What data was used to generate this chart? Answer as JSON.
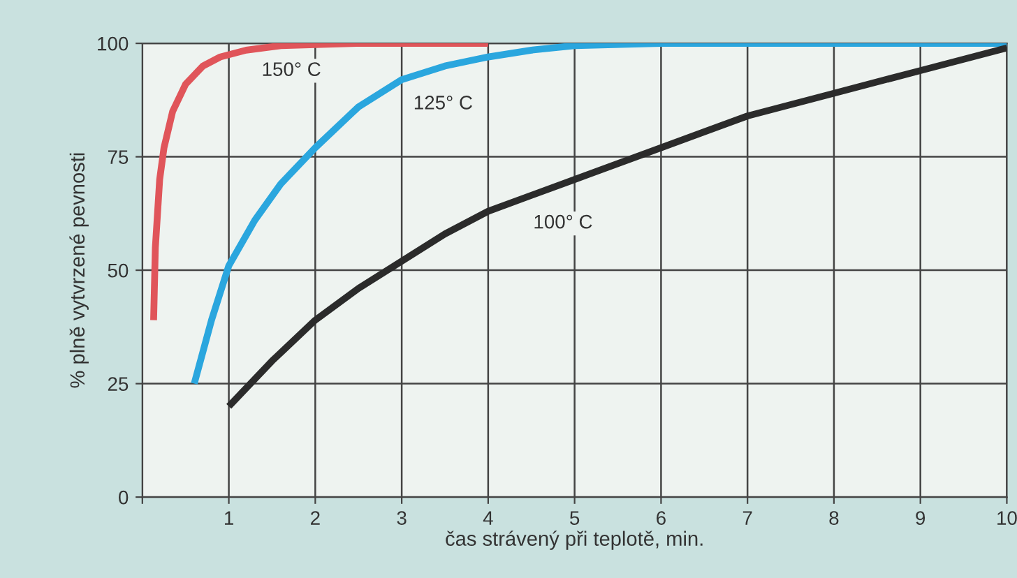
{
  "chart_data": {
    "type": "line",
    "xlabel": "čas strávený při teplotě, min.",
    "ylabel": "% plně vytvrzené pevnosti",
    "xlim": [
      0,
      10
    ],
    "ylim": [
      0,
      100
    ],
    "xticks": [
      {
        "value": 0,
        "label": null
      },
      1,
      2,
      3,
      4,
      5,
      6,
      7,
      8,
      9,
      10
    ],
    "yticks": [
      0,
      25,
      50,
      75,
      100
    ],
    "grid": true,
    "legend": false,
    "marker": "none",
    "line_style": "solid",
    "series": [
      {
        "name": "150° C",
        "color": "#e0555a",
        "x": [
          0.13,
          0.15,
          0.2,
          0.25,
          0.35,
          0.5,
          0.7,
          0.9,
          1.2,
          1.6,
          2.5,
          4
        ],
        "values": [
          39,
          55,
          70,
          77,
          85,
          91,
          95,
          97,
          98.5,
          99.5,
          100,
          100
        ]
      },
      {
        "name": "125° C",
        "color": "#2aa6de",
        "x": [
          0.6,
          0.8,
          1,
          1.3,
          1.6,
          2,
          2.5,
          3,
          3.5,
          4,
          4.5,
          5,
          6,
          8,
          10
        ],
        "values": [
          25,
          39,
          51,
          61,
          69,
          77,
          86,
          92,
          95,
          97,
          98.5,
          99.5,
          100,
          100,
          100
        ]
      },
      {
        "name": "100° C",
        "color": "#2b2b2b",
        "x": [
          1,
          1.5,
          2,
          2.5,
          3,
          3.5,
          4,
          5,
          6,
          7,
          8,
          9,
          10
        ],
        "values": [
          20,
          30,
          39,
          46,
          52,
          58,
          63,
          70,
          77,
          84,
          89,
          94,
          99
        ]
      }
    ]
  }
}
